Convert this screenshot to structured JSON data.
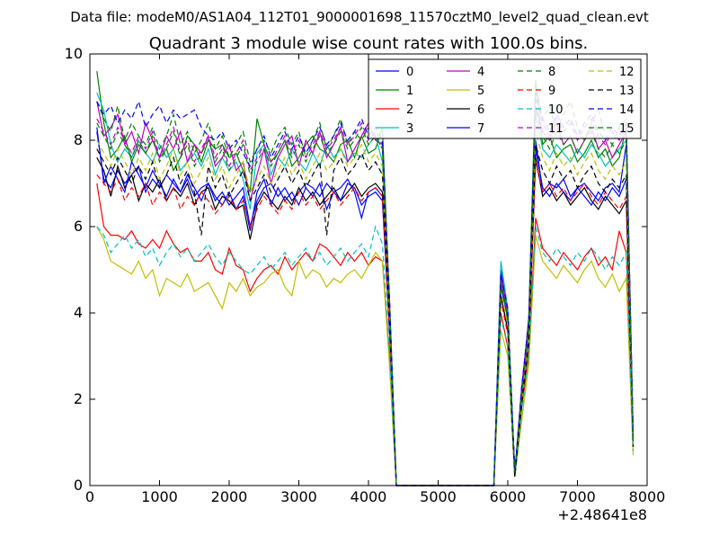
{
  "chart_data": {
    "type": "line",
    "suptitle": "Data file: modeM0/AS1A04_112T01_9000001698_11570cztM0_level2_quad_clean.evt",
    "title": "Quadrant 3 module wise count rates with 100.0s bins.",
    "xlabel": "",
    "ylabel": "",
    "x_offset_label": "+2.48641e8",
    "xlim": [
      0,
      8000
    ],
    "ylim": [
      0,
      10
    ],
    "xticks": [
      0,
      1000,
      2000,
      3000,
      4000,
      5000,
      6000,
      7000,
      8000
    ],
    "yticks": [
      0,
      2,
      4,
      6,
      8,
      10
    ],
    "grid": false,
    "legend_position": "top-right",
    "legend_columns": 4,
    "x": [
      100,
      200,
      300,
      400,
      500,
      600,
      700,
      800,
      900,
      1000,
      1100,
      1200,
      1300,
      1400,
      1500,
      1600,
      1700,
      1800,
      1900,
      2000,
      2100,
      2200,
      2300,
      2400,
      2500,
      2600,
      2700,
      2800,
      2900,
      3000,
      3100,
      3200,
      3300,
      3400,
      3500,
      3600,
      3700,
      3800,
      3900,
      4000,
      4100,
      4200,
      4300,
      4400,
      4500,
      5000,
      5500,
      5800,
      5900,
      6000,
      6100,
      6200,
      6300,
      6400,
      6500,
      6600,
      6700,
      6800,
      6900,
      7000,
      7100,
      7200,
      7300,
      7400,
      7500,
      7600,
      7700,
      7800
    ],
    "series": [
      {
        "name": "0",
        "color": "#0000ff",
        "dash": "solid",
        "values": [
          8.2,
          7.1,
          6.9,
          7.3,
          7.0,
          7.2,
          7.4,
          6.8,
          7.1,
          6.9,
          7.2,
          7.0,
          6.8,
          7.1,
          6.7,
          6.9,
          7.0,
          6.6,
          6.8,
          6.5,
          6.7,
          6.9,
          6.0,
          6.6,
          6.9,
          7.0,
          6.7,
          6.9,
          6.6,
          6.8,
          7.0,
          6.9,
          6.7,
          7.0,
          6.8,
          6.9,
          7.1,
          6.8,
          6.2,
          6.8,
          6.9,
          6.7,
          3.8,
          0.0,
          0.0,
          0.0,
          0.0,
          0.0,
          5.0,
          4.0,
          0.2,
          2.0,
          3.5,
          8.0,
          6.8,
          7.0,
          6.9,
          7.1,
          6.7,
          6.9,
          7.0,
          6.8,
          6.6,
          6.9,
          7.0,
          6.8,
          7.9,
          1.2
        ]
      },
      {
        "name": "1",
        "color": "#008000",
        "dash": "solid",
        "values": [
          9.6,
          8.4,
          7.6,
          7.8,
          8.1,
          7.5,
          7.9,
          7.7,
          8.0,
          7.6,
          7.8,
          7.3,
          7.6,
          8.1,
          7.9,
          7.5,
          8.0,
          7.8,
          7.9,
          7.6,
          7.7,
          7.3,
          6.8,
          8.5,
          7.9,
          7.5,
          7.7,
          8.0,
          7.4,
          7.6,
          7.9,
          8.1,
          7.8,
          7.7,
          7.5,
          7.9,
          8.0,
          7.6,
          8.1,
          7.7,
          7.8,
          8.3,
          4.2,
          0.0,
          0.0,
          0.0,
          0.0,
          0.0,
          4.8,
          3.8,
          0.3,
          2.2,
          3.9,
          9.4,
          7.9,
          8.1,
          7.6,
          7.8,
          7.9,
          7.5,
          7.7,
          8.0,
          7.6,
          7.8,
          7.4,
          7.6,
          8.3,
          1.0
        ]
      },
      {
        "name": "2",
        "color": "#ff0000",
        "dash": "solid",
        "values": [
          7.0,
          6.0,
          5.8,
          5.8,
          5.7,
          5.9,
          5.6,
          5.5,
          5.7,
          5.5,
          5.9,
          5.6,
          5.4,
          5.5,
          5.2,
          5.2,
          5.4,
          5.0,
          4.9,
          5.5,
          5.1,
          5.0,
          4.5,
          4.8,
          5.0,
          5.1,
          4.9,
          5.3,
          5.0,
          5.2,
          5.4,
          5.2,
          5.6,
          5.5,
          5.3,
          5.1,
          5.4,
          5.2,
          5.4,
          5.1,
          5.3,
          5.2,
          3.0,
          0.0,
          0.0,
          0.0,
          0.0,
          0.0,
          4.0,
          3.2,
          0.2,
          1.8,
          3.0,
          6.2,
          5.5,
          5.3,
          5.1,
          5.4,
          5.2,
          5.0,
          5.3,
          5.5,
          5.1,
          5.3,
          5.0,
          5.9,
          5.4,
          0.9
        ]
      },
      {
        "name": "3",
        "color": "#00bfbf",
        "dash": "solid",
        "values": [
          9.1,
          8.7,
          7.9,
          7.5,
          7.8,
          7.6,
          8.0,
          7.7,
          7.5,
          7.9,
          7.6,
          7.8,
          7.3,
          7.5,
          7.7,
          7.4,
          7.8,
          7.2,
          7.6,
          7.3,
          7.5,
          7.1,
          6.4,
          7.7,
          7.9,
          7.2,
          7.6,
          7.4,
          7.8,
          7.5,
          7.3,
          7.7,
          7.4,
          7.9,
          7.6,
          7.8,
          7.5,
          7.7,
          7.6,
          7.9,
          8.1,
          7.5,
          4.0,
          0.0,
          0.0,
          0.0,
          0.0,
          0.0,
          5.2,
          4.1,
          0.3,
          2.1,
          3.7,
          8.6,
          7.8,
          7.6,
          7.9,
          7.7,
          7.5,
          7.8,
          7.6,
          7.9,
          7.7,
          7.4,
          7.6,
          7.8,
          8.0,
          1.1
        ]
      },
      {
        "name": "4",
        "color": "#bf00bf",
        "dash": "solid",
        "values": [
          8.9,
          8.1,
          8.3,
          8.6,
          7.9,
          8.2,
          7.7,
          8.4,
          8.0,
          7.6,
          8.1,
          7.8,
          8.2,
          7.5,
          7.9,
          7.7,
          8.1,
          7.4,
          7.6,
          7.9,
          7.3,
          7.5,
          6.6,
          7.2,
          7.8,
          7.0,
          7.6,
          7.9,
          8.1,
          7.4,
          8.0,
          7.7,
          8.2,
          7.6,
          7.9,
          8.3,
          7.5,
          7.8,
          8.1,
          8.4,
          8.0,
          7.9,
          4.3,
          0.0,
          0.0,
          0.0,
          0.0,
          0.0,
          4.9,
          4.0,
          0.3,
          2.3,
          3.8,
          8.8,
          8.2,
          8.0,
          8.4,
          7.9,
          8.1,
          7.7,
          8.0,
          8.3,
          7.8,
          8.0,
          7.6,
          7.9,
          8.2,
          1.2
        ]
      },
      {
        "name": "5",
        "color": "#bfbf00",
        "dash": "solid",
        "values": [
          6.0,
          5.7,
          5.2,
          5.1,
          5.0,
          4.9,
          5.2,
          4.8,
          5.0,
          4.4,
          4.8,
          4.7,
          4.6,
          4.9,
          4.5,
          4.6,
          4.7,
          4.4,
          4.1,
          4.7,
          4.5,
          4.8,
          4.4,
          4.6,
          4.7,
          4.9,
          5.0,
          4.6,
          4.4,
          5.2,
          4.8,
          5.0,
          4.9,
          4.6,
          4.8,
          4.7,
          4.9,
          5.0,
          4.8,
          5.1,
          5.4,
          5.2,
          2.8,
          0.0,
          0.0,
          0.0,
          0.0,
          0.0,
          3.6,
          3.0,
          0.2,
          1.5,
          2.8,
          5.8,
          5.2,
          5.0,
          4.8,
          5.1,
          4.9,
          4.7,
          5.0,
          5.2,
          4.8,
          4.6,
          4.9,
          4.5,
          4.8,
          0.7
        ]
      },
      {
        "name": "6",
        "color": "#000000",
        "dash": "solid",
        "values": [
          7.6,
          7.3,
          6.7,
          7.4,
          6.9,
          7.2,
          6.6,
          7.0,
          6.8,
          7.1,
          6.6,
          6.9,
          6.7,
          7.0,
          6.5,
          6.8,
          6.9,
          6.4,
          6.7,
          6.6,
          6.4,
          6.5,
          5.7,
          6.5,
          6.8,
          6.6,
          6.4,
          6.7,
          6.5,
          6.9,
          6.6,
          6.8,
          6.5,
          6.7,
          6.9,
          6.6,
          6.8,
          7.0,
          6.7,
          6.9,
          7.0,
          6.8,
          3.7,
          0.0,
          0.0,
          0.0,
          0.0,
          0.0,
          4.4,
          3.6,
          0.2,
          1.9,
          3.3,
          7.6,
          6.7,
          6.9,
          6.6,
          6.8,
          6.5,
          6.7,
          6.9,
          6.6,
          6.4,
          6.7,
          6.5,
          6.3,
          6.6,
          0.9
        ]
      },
      {
        "name": "7",
        "color": "#0000ff",
        "dash": "solid",
        "values": [
          8.3,
          7.0,
          7.4,
          7.1,
          6.8,
          7.5,
          7.2,
          6.9,
          7.3,
          7.0,
          6.7,
          7.1,
          6.8,
          7.2,
          6.9,
          6.6,
          7.0,
          6.7,
          6.5,
          6.8,
          6.4,
          6.7,
          5.9,
          6.8,
          7.1,
          6.5,
          6.9,
          6.6,
          6.8,
          6.5,
          6.9,
          6.7,
          7.0,
          6.4,
          6.8,
          6.6,
          7.0,
          6.9,
          6.5,
          6.7,
          6.8,
          6.6,
          3.6,
          0.0,
          0.0,
          0.0,
          0.0,
          0.0,
          4.6,
          3.9,
          0.2,
          2.0,
          3.4,
          7.8,
          6.9,
          6.7,
          7.0,
          6.8,
          6.6,
          6.9,
          6.7,
          6.5,
          6.8,
          6.6,
          6.9,
          6.7,
          7.1,
          1.0
        ]
      },
      {
        "name": "8",
        "color": "#008000",
        "dash": "dashed",
        "values": [
          8.9,
          8.5,
          8.2,
          8.8,
          8.0,
          8.4,
          8.1,
          7.9,
          8.3,
          7.8,
          8.1,
          8.6,
          7.9,
          8.2,
          7.7,
          8.0,
          8.4,
          7.8,
          8.1,
          7.6,
          7.9,
          8.2,
          7.5,
          7.8,
          8.0,
          7.7,
          8.1,
          8.3,
          7.9,
          8.2,
          7.6,
          8.0,
          8.4,
          7.8,
          8.1,
          8.5,
          7.9,
          8.2,
          8.0,
          8.3,
          8.1,
          7.8,
          4.4,
          0.0,
          0.0,
          0.0,
          0.0,
          0.0,
          4.7,
          3.9,
          0.3,
          2.2,
          3.6,
          9.3,
          8.5,
          8.8,
          8.2,
          8.6,
          8.9,
          8.3,
          8.0,
          8.4,
          8.7,
          8.1,
          7.9,
          8.3,
          8.5,
          1.1
        ]
      },
      {
        "name": "9",
        "color": "#ff0000",
        "dash": "dashed",
        "values": [
          7.2,
          7.0,
          6.8,
          7.1,
          6.6,
          6.9,
          6.7,
          7.0,
          6.5,
          6.8,
          6.6,
          6.9,
          6.4,
          6.7,
          6.5,
          6.8,
          6.6,
          6.3,
          6.5,
          6.7,
          6.4,
          6.6,
          6.0,
          6.4,
          6.7,
          6.5,
          6.3,
          6.6,
          6.4,
          6.8,
          6.5,
          6.7,
          6.4,
          6.6,
          6.8,
          6.5,
          6.7,
          6.9,
          6.6,
          6.8,
          6.9,
          6.7,
          3.7,
          0.0,
          0.0,
          0.0,
          0.0,
          0.0,
          4.3,
          3.5,
          0.2,
          1.9,
          3.2,
          7.5,
          6.8,
          7.0,
          6.7,
          6.9,
          6.6,
          6.8,
          7.0,
          6.7,
          6.5,
          6.8,
          6.6,
          6.4,
          6.7,
          0.9
        ]
      },
      {
        "name": "10",
        "color": "#00bfbf",
        "dash": "dashed",
        "values": [
          6.0,
          5.8,
          5.4,
          5.6,
          5.8,
          5.5,
          5.7,
          5.3,
          5.5,
          5.1,
          5.4,
          5.6,
          5.3,
          5.5,
          5.2,
          5.4,
          5.6,
          5.3,
          5.1,
          5.4,
          5.2,
          5.0,
          4.9,
          5.1,
          5.3,
          5.0,
          5.2,
          5.4,
          5.1,
          5.3,
          5.5,
          5.2,
          5.4,
          5.1,
          5.3,
          5.5,
          5.2,
          5.4,
          5.6,
          5.3,
          6.0,
          5.6,
          3.1,
          0.0,
          0.0,
          0.0,
          0.0,
          0.0,
          3.9,
          3.2,
          0.2,
          1.7,
          3.0,
          6.0,
          5.4,
          5.2,
          5.5,
          5.3,
          5.1,
          5.4,
          5.2,
          5.5,
          5.3,
          5.0,
          5.3,
          5.1,
          5.4,
          0.8
        ]
      },
      {
        "name": "11",
        "color": "#bf00bf",
        "dash": "dashed",
        "values": [
          8.5,
          8.2,
          7.9,
          8.3,
          8.0,
          7.7,
          8.1,
          7.8,
          8.2,
          7.6,
          7.9,
          8.3,
          7.7,
          8.0,
          7.5,
          7.8,
          8.1,
          7.6,
          7.9,
          7.4,
          7.7,
          8.0,
          7.3,
          7.6,
          7.9,
          7.5,
          7.8,
          8.1,
          7.7,
          8.0,
          7.6,
          7.9,
          8.2,
          7.8,
          8.0,
          8.3,
          7.9,
          8.1,
          8.4,
          8.0,
          8.2,
          7.9,
          4.3,
          0.0,
          0.0,
          0.0,
          0.0,
          0.0,
          4.8,
          4.0,
          0.3,
          2.2,
          3.7,
          9.0,
          8.4,
          8.1,
          8.5,
          8.2,
          8.4,
          8.0,
          8.3,
          8.5,
          8.1,
          7.9,
          8.2,
          8.0,
          8.3,
          1.1
        ]
      },
      {
        "name": "12",
        "color": "#bfbf00",
        "dash": "dashed",
        "values": [
          8.0,
          7.7,
          7.4,
          7.8,
          7.5,
          7.2,
          7.6,
          7.3,
          7.7,
          7.1,
          7.4,
          7.8,
          7.2,
          7.5,
          7.0,
          7.3,
          7.6,
          7.1,
          7.4,
          6.9,
          7.2,
          7.5,
          6.8,
          7.1,
          7.4,
          7.0,
          7.3,
          7.6,
          7.2,
          7.5,
          7.1,
          7.4,
          7.7,
          7.3,
          7.5,
          7.8,
          7.4,
          7.6,
          7.9,
          7.5,
          7.7,
          7.4,
          4.0,
          0.0,
          0.0,
          0.0,
          0.0,
          0.0,
          4.5,
          3.7,
          0.2,
          2.0,
          3.4,
          8.2,
          7.6,
          7.3,
          7.7,
          7.4,
          7.6,
          7.2,
          7.5,
          7.7,
          7.3,
          7.1,
          7.4,
          7.2,
          7.5,
          1.0
        ]
      },
      {
        "name": "13",
        "color": "#000000",
        "dash": "dashed",
        "values": [
          7.8,
          7.5,
          7.2,
          7.6,
          7.3,
          7.0,
          7.4,
          7.1,
          7.5,
          6.9,
          7.2,
          7.6,
          7.0,
          7.3,
          6.8,
          5.8,
          7.4,
          6.9,
          7.2,
          6.7,
          7.0,
          7.3,
          6.6,
          6.9,
          7.2,
          6.8,
          7.1,
          7.4,
          7.0,
          7.3,
          6.9,
          7.2,
          7.5,
          5.8,
          7.3,
          7.6,
          7.2,
          7.4,
          7.7,
          7.3,
          7.5,
          7.2,
          3.9,
          0.0,
          0.0,
          0.0,
          0.0,
          0.0,
          4.4,
          3.6,
          0.2,
          1.9,
          3.3,
          7.9,
          7.3,
          7.0,
          7.4,
          7.1,
          7.3,
          6.9,
          7.2,
          7.4,
          7.0,
          6.8,
          7.1,
          6.9,
          7.2,
          0.9
        ]
      },
      {
        "name": "14",
        "color": "#0000ff",
        "dash": "dashed",
        "values": [
          8.9,
          8.6,
          8.8,
          8.4,
          8.7,
          8.5,
          8.9,
          8.3,
          8.6,
          8.8,
          8.4,
          8.7,
          8.5,
          8.6,
          8.7,
          8.3,
          8.1,
          8.0,
          8.2,
          7.8,
          8.0,
          7.7,
          7.4,
          7.8,
          8.1,
          7.6,
          7.9,
          8.2,
          7.8,
          8.1,
          7.7,
          8.0,
          8.3,
          7.9,
          8.1,
          8.4,
          8.0,
          8.2,
          8.5,
          8.1,
          8.3,
          8.0,
          4.4,
          0.0,
          0.0,
          0.0,
          0.0,
          0.0,
          4.9,
          4.1,
          0.3,
          2.3,
          3.8,
          9.1,
          8.5,
          8.2,
          8.6,
          8.3,
          8.5,
          8.1,
          8.4,
          8.6,
          8.2,
          8.0,
          8.3,
          8.1,
          8.4,
          1.1
        ]
      },
      {
        "name": "15",
        "color": "#008000",
        "dash": "dashed",
        "values": [
          8.4,
          8.1,
          7.8,
          8.2,
          7.9,
          7.6,
          8.0,
          7.7,
          8.1,
          7.5,
          7.8,
          8.2,
          7.6,
          7.9,
          7.4,
          7.7,
          8.0,
          7.5,
          7.8,
          7.3,
          7.6,
          7.9,
          7.2,
          7.5,
          7.8,
          7.4,
          7.7,
          8.0,
          7.6,
          7.9,
          7.5,
          7.8,
          8.1,
          7.7,
          7.9,
          8.2,
          7.8,
          8.0,
          8.3,
          7.9,
          8.1,
          7.8,
          4.2,
          0.0,
          0.0,
          0.0,
          0.0,
          0.0,
          4.7,
          3.9,
          0.3,
          2.1,
          3.6,
          8.7,
          8.1,
          7.8,
          8.2,
          7.9,
          8.1,
          7.7,
          8.0,
          8.2,
          7.8,
          7.6,
          7.9,
          7.7,
          8.0,
          1.0
        ]
      }
    ]
  }
}
